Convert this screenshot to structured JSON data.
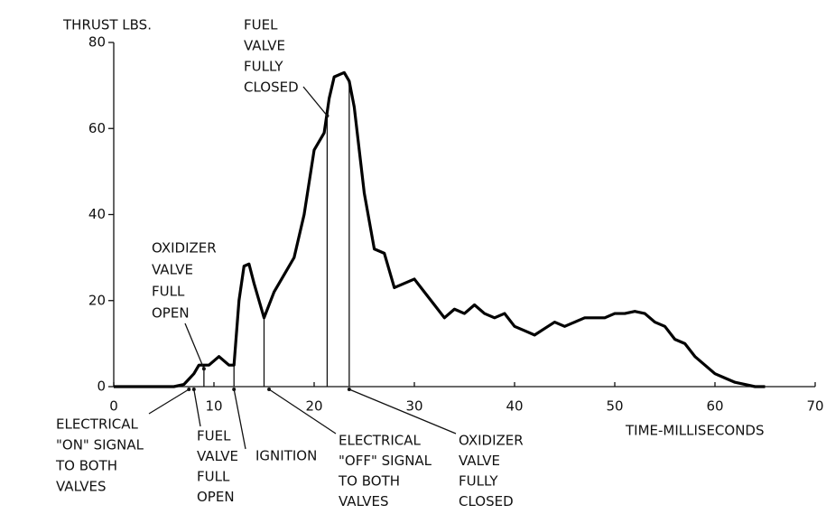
{
  "chart_data": {
    "type": "line",
    "y_label": "THRUST LBS.",
    "x_label": "TIME-MILLISECONDS",
    "x": [
      0,
      6,
      7,
      8,
      8.5,
      9.5,
      10.5,
      11.5,
      12,
      12.5,
      13,
      13.5,
      14,
      15,
      16,
      17,
      18,
      19,
      20,
      21,
      21.5,
      22,
      23,
      23.5,
      24,
      25,
      26,
      27,
      28,
      29,
      30,
      31,
      32,
      33,
      34,
      35,
      36,
      37,
      38,
      39,
      40,
      41,
      42,
      43,
      44,
      45,
      46,
      47,
      48,
      49,
      50,
      51,
      52,
      53,
      54,
      55,
      56,
      57,
      58,
      59,
      60,
      61,
      62,
      63,
      64,
      65
    ],
    "series": [
      {
        "name": "Thrust",
        "color": "#000000",
        "values": [
          0,
          0,
          0.5,
          3,
          5,
          5,
          7,
          5,
          5,
          20,
          28,
          28.5,
          24,
          16,
          22,
          26,
          30,
          40,
          55,
          59,
          67,
          72,
          73,
          71,
          65,
          45,
          32,
          31,
          23,
          24,
          25,
          22,
          19,
          16,
          18,
          17,
          19,
          17,
          16,
          17,
          14,
          13,
          12,
          13.5,
          15,
          14,
          15,
          16,
          16,
          16,
          17,
          17,
          17.5,
          17,
          15,
          14,
          11,
          10,
          7,
          5,
          3,
          2,
          1,
          0.5,
          0,
          0
        ]
      }
    ],
    "xlim": [
      0,
      70
    ],
    "xticks": [
      0,
      10,
      20,
      30,
      40,
      50,
      60,
      70
    ],
    "ylim": [
      0,
      80
    ],
    "yticks": [
      0,
      20,
      40,
      60,
      80
    ],
    "markers": [
      9,
      12,
      15,
      21.3,
      23.5
    ],
    "annotations": [
      {
        "lines": [
          "ELECTRICAL",
          "\"ON\" SIGNAL",
          "TO BOTH",
          "VALVES"
        ],
        "x": 7.5
      },
      {
        "lines": [
          "FUEL",
          "VALVE",
          "FULL",
          "OPEN"
        ],
        "x": 8
      },
      {
        "lines": [
          "IGNITION"
        ],
        "x": 12
      },
      {
        "lines": [
          "ELECTRICAL",
          "\"OFF\" SIGNAL",
          "TO BOTH",
          "VALVES"
        ],
        "x": 15.5
      },
      {
        "lines": [
          "OXIDIZER",
          "VALVE",
          "FULLY",
          "CLOSED"
        ],
        "x": 23.5
      },
      {
        "lines": [
          "OXIDIZER",
          "VALVE",
          "FULL",
          "OPEN"
        ],
        "x": 9
      },
      {
        "lines": [
          "FUEL",
          "VALVE",
          "FULLY",
          "CLOSED"
        ],
        "x": 21.3
      }
    ]
  }
}
